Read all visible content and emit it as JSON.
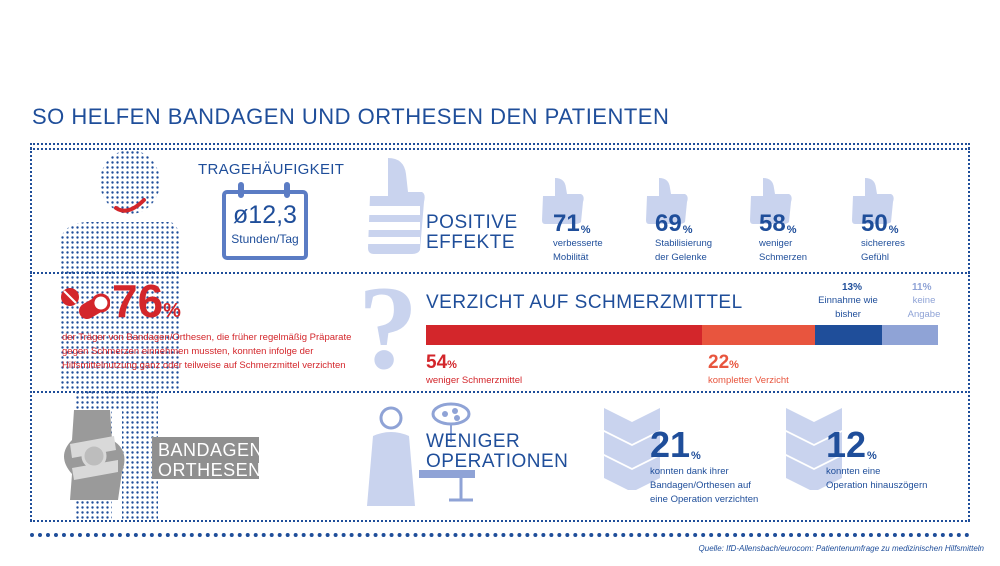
{
  "title": "SO HELFEN BANDAGEN UND ORTHESEN DEN PATIENTEN",
  "wear": {
    "heading": "TRAGEHÄUFIGKEIT",
    "value": "ø12,3",
    "unit": "Stunden/Tag"
  },
  "positive": {
    "label_line1": "POSITIVE",
    "label_line2": "EFFEKTE",
    "items": [
      {
        "value": "71",
        "pct": "%",
        "line1": "verbesserte",
        "line2": "Mobilität"
      },
      {
        "value": "69",
        "pct": "%",
        "line1": "Stabilisierung",
        "line2": "der Gelenke"
      },
      {
        "value": "58",
        "pct": "%",
        "line1": "weniger",
        "line2": "Schmerzen"
      },
      {
        "value": "50",
        "pct": "%",
        "line1": "sichereres",
        "line2": "Gefühl"
      }
    ]
  },
  "painkiller_share": {
    "value": "76",
    "pct": "%",
    "line1": "der Träger von Bandagen/Orthesen, die früher regelmäßig Präparate",
    "line2": "gegen Schmerzen einnehmen  mussten, konnten infolge der",
    "line3": "Hilfsmittelnutzung ganz oder teilweise auf  Schmerzmittel verzichten"
  },
  "painkiller_bar": {
    "heading": "VERZICHT AUF SCHMERZMITTEL",
    "segments": [
      {
        "value": "54",
        "pct": "%",
        "label": "weniger Schmerzmittel",
        "share": 54,
        "color": "#d3262b"
      },
      {
        "value": "22",
        "pct": "%",
        "label": "kompletter Verzicht",
        "share": 22,
        "color": "#e8553e"
      },
      {
        "value": "13",
        "pct": "%",
        "line1": "Einnahme wie",
        "line2": "bisher",
        "share": 13,
        "color": "#1f4e9a"
      },
      {
        "value": "11",
        "pct": "%",
        "line1": "keine",
        "line2": "Angabe",
        "share": 11,
        "color": "#8fa3d6"
      }
    ]
  },
  "product": {
    "line1": "BANDAGEN/",
    "line2": "ORTHESEN"
  },
  "operations": {
    "label_line1": "WENIGER",
    "label_line2": "OPERATIONEN",
    "items": [
      {
        "value": "21",
        "pct": "%",
        "line1": "konnten dank ihrer",
        "line2": "Bandagen/Orthesen auf",
        "line3": "eine Operation verzichten"
      },
      {
        "value": "12",
        "pct": "%",
        "line1": "konnten eine",
        "line2": "Operation hinauszögern"
      }
    ]
  },
  "source": "Quelle: IfD-Allensbach/eurocom: Patientenumfrage zu medizinischen Hilfsmitteln",
  "colors": {
    "navy": "#1f4e9a",
    "red": "#d3262b",
    "light_blue": "#c9d3ee",
    "orange_red": "#e8553e"
  },
  "icons": [
    "person-silhouette-icon",
    "smile-icon",
    "calendar-icon",
    "thumbs-up-icon",
    "pills-icon",
    "question-mark-icon",
    "knee-brace-icon",
    "surgeon-icon",
    "surgical-lamp-icon",
    "chevron-down-icon"
  ]
}
